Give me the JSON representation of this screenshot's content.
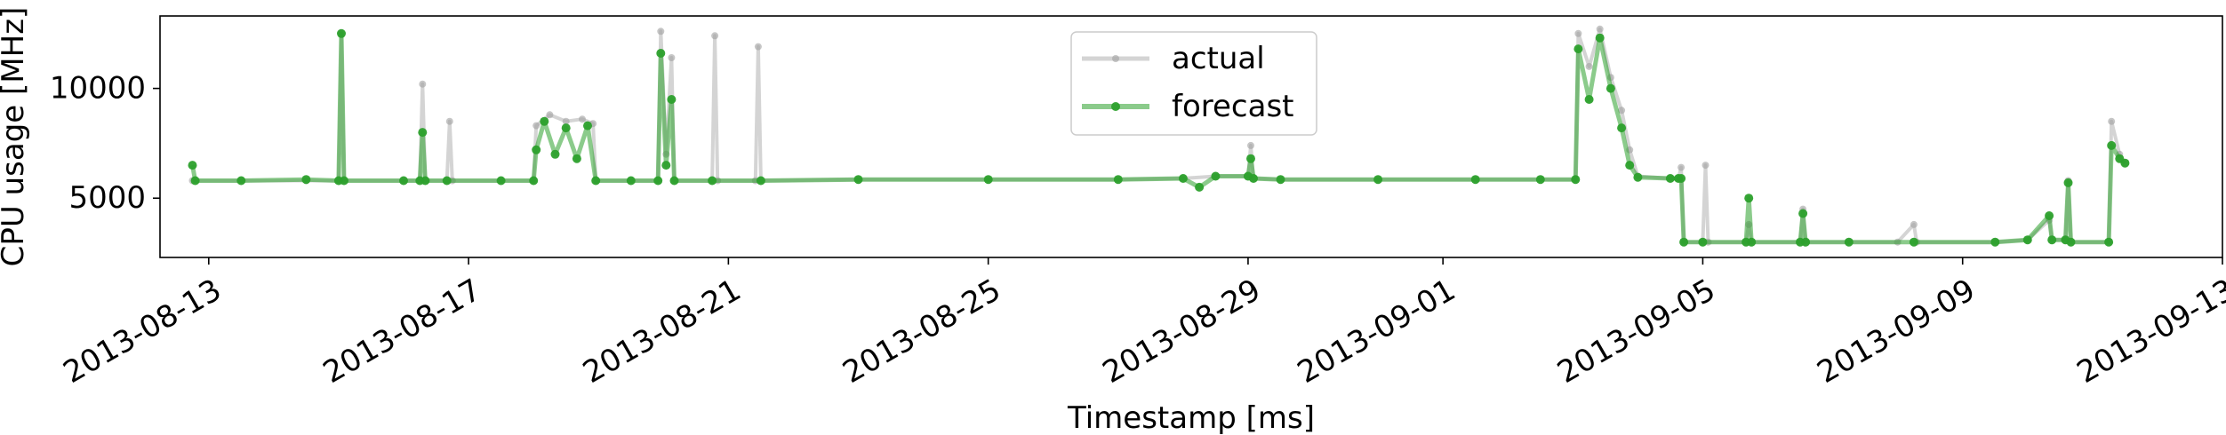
{
  "chart_data": {
    "type": "line",
    "title": "",
    "xlabel": "Timestamp [ms]",
    "ylabel": "CPU usage [MHz]",
    "x_type": "date",
    "xlim": [
      "2013-08-12T06:00",
      "2013-09-13T00:00"
    ],
    "ylim": [
      2300,
      13300
    ],
    "grid": false,
    "legend_position": "top-center",
    "x_tick_labels": [
      "2013-08-13",
      "2013-08-17",
      "2013-08-21",
      "2013-08-25",
      "2013-08-29",
      "2013-09-01",
      "2013-09-05",
      "2013-09-09",
      "2013-09-13"
    ],
    "x_tick_values": [
      "2013-08-13",
      "2013-08-17",
      "2013-08-21",
      "2013-08-25",
      "2013-08-29",
      "2013-09-01",
      "2013-09-05",
      "2013-09-09",
      "2013-09-13"
    ],
    "y_tick_labels": [
      "5000",
      "10000"
    ],
    "y_tick_values": [
      5000,
      10000
    ],
    "series": [
      {
        "name": "actual",
        "color": "#a0a0a0",
        "points": [
          [
            "2013-08-12T18:00",
            5800
          ],
          [
            "2013-08-13T12:00",
            5800
          ],
          [
            "2013-08-14T12:00",
            5800
          ],
          [
            "2013-08-15T00:00",
            5800
          ],
          [
            "2013-08-15T01:00",
            12500
          ],
          [
            "2013-08-15T02:00",
            5800
          ],
          [
            "2013-08-16T00:00",
            5800
          ],
          [
            "2013-08-16T06:00",
            5800
          ],
          [
            "2013-08-16T07:00",
            10200
          ],
          [
            "2013-08-16T08:00",
            5800
          ],
          [
            "2013-08-16T16:00",
            5800
          ],
          [
            "2013-08-16T17:00",
            8500
          ],
          [
            "2013-08-16T18:00",
            5800
          ],
          [
            "2013-08-17T12:00",
            5800
          ],
          [
            "2013-08-18T00:00",
            5800
          ],
          [
            "2013-08-18T01:00",
            8300
          ],
          [
            "2013-08-18T06:00",
            8800
          ],
          [
            "2013-08-18T12:00",
            8500
          ],
          [
            "2013-08-18T18:00",
            8600
          ],
          [
            "2013-08-18T22:00",
            8400
          ],
          [
            "2013-08-18T23:00",
            5800
          ],
          [
            "2013-08-19T12:00",
            5800
          ],
          [
            "2013-08-19T22:00",
            5800
          ],
          [
            "2013-08-19T23:00",
            12600
          ],
          [
            "2013-08-20T01:00",
            7000
          ],
          [
            "2013-08-20T03:00",
            11400
          ],
          [
            "2013-08-20T04:00",
            5800
          ],
          [
            "2013-08-20T18:00",
            5800
          ],
          [
            "2013-08-20T19:00",
            12400
          ],
          [
            "2013-08-20T20:00",
            5800
          ],
          [
            "2013-08-21T10:00",
            5800
          ],
          [
            "2013-08-21T11:00",
            11900
          ],
          [
            "2013-08-21T12:00",
            5800
          ],
          [
            "2013-08-23T00:00",
            5850
          ],
          [
            "2013-08-25T00:00",
            5850
          ],
          [
            "2013-08-27T00:00",
            5850
          ],
          [
            "2013-08-28T00:00",
            5900
          ],
          [
            "2013-08-28T12:00",
            6000
          ],
          [
            "2013-08-29T00:00",
            6000
          ],
          [
            "2013-08-29T01:00",
            7400
          ],
          [
            "2013-08-29T02:00",
            5900
          ],
          [
            "2013-08-29T12:00",
            5850
          ],
          [
            "2013-08-31T00:00",
            5850
          ],
          [
            "2013-09-01T12:00",
            5850
          ],
          [
            "2013-09-02T12:00",
            5850
          ],
          [
            "2013-09-03T01:00",
            5850
          ],
          [
            "2013-09-03T02:00",
            12500
          ],
          [
            "2013-09-03T06:00",
            11000
          ],
          [
            "2013-09-03T10:00",
            12700
          ],
          [
            "2013-09-03T14:00",
            10500
          ],
          [
            "2013-09-03T18:00",
            9000
          ],
          [
            "2013-09-03T21:00",
            7200
          ],
          [
            "2013-09-04T00:00",
            6000
          ],
          [
            "2013-09-04T12:00",
            5900
          ],
          [
            "2013-09-04T15:00",
            5900
          ],
          [
            "2013-09-04T16:00",
            6400
          ],
          [
            "2013-09-04T17:00",
            3000
          ],
          [
            "2013-09-05T00:00",
            3000
          ],
          [
            "2013-09-05T01:00",
            6500
          ],
          [
            "2013-09-05T02:00",
            3000
          ],
          [
            "2013-09-05T16:00",
            3000
          ],
          [
            "2013-09-05T17:00",
            3800
          ],
          [
            "2013-09-05T18:00",
            3000
          ],
          [
            "2013-09-06T12:00",
            3000
          ],
          [
            "2013-09-06T13:00",
            4500
          ],
          [
            "2013-09-06T14:00",
            3000
          ],
          [
            "2013-09-07T06:00",
            3000
          ],
          [
            "2013-09-08T00:00",
            3000
          ],
          [
            "2013-09-08T06:00",
            3800
          ],
          [
            "2013-09-08T07:00",
            3000
          ],
          [
            "2013-09-09T12:00",
            3000
          ],
          [
            "2013-09-10T00:00",
            3100
          ],
          [
            "2013-09-10T08:00",
            4000
          ],
          [
            "2013-09-10T09:00",
            3100
          ],
          [
            "2013-09-10T14:00",
            3100
          ],
          [
            "2013-09-10T15:00",
            5800
          ],
          [
            "2013-09-10T16:00",
            3000
          ],
          [
            "2013-09-11T06:00",
            3000
          ],
          [
            "2013-09-11T07:00",
            8500
          ],
          [
            "2013-09-11T10:00",
            7000
          ],
          [
            "2013-09-11T12:00",
            6600
          ]
        ]
      },
      {
        "name": "forecast",
        "color": "#2ca02c",
        "points": [
          [
            "2013-08-12T18:00",
            6500
          ],
          [
            "2013-08-12T19:00",
            5800
          ],
          [
            "2013-08-13T12:00",
            5800
          ],
          [
            "2013-08-14T12:00",
            5850
          ],
          [
            "2013-08-15T00:00",
            5800
          ],
          [
            "2013-08-15T01:00",
            12500
          ],
          [
            "2013-08-15T02:00",
            5800
          ],
          [
            "2013-08-16T00:00",
            5800
          ],
          [
            "2013-08-16T06:00",
            5800
          ],
          [
            "2013-08-16T07:00",
            8000
          ],
          [
            "2013-08-16T08:00",
            5800
          ],
          [
            "2013-08-16T16:00",
            5800
          ],
          [
            "2013-08-17T12:00",
            5800
          ],
          [
            "2013-08-18T00:00",
            5800
          ],
          [
            "2013-08-18T01:00",
            7200
          ],
          [
            "2013-08-18T04:00",
            8500
          ],
          [
            "2013-08-18T08:00",
            7000
          ],
          [
            "2013-08-18T12:00",
            8200
          ],
          [
            "2013-08-18T16:00",
            6800
          ],
          [
            "2013-08-18T20:00",
            8300
          ],
          [
            "2013-08-18T23:00",
            5800
          ],
          [
            "2013-08-19T12:00",
            5800
          ],
          [
            "2013-08-19T22:00",
            5800
          ],
          [
            "2013-08-19T23:00",
            11600
          ],
          [
            "2013-08-20T01:00",
            6500
          ],
          [
            "2013-08-20T03:00",
            9500
          ],
          [
            "2013-08-20T04:00",
            5800
          ],
          [
            "2013-08-20T18:00",
            5800
          ],
          [
            "2013-08-21T12:00",
            5800
          ],
          [
            "2013-08-23T00:00",
            5850
          ],
          [
            "2013-08-25T00:00",
            5850
          ],
          [
            "2013-08-27T00:00",
            5850
          ],
          [
            "2013-08-28T00:00",
            5900
          ],
          [
            "2013-08-28T06:00",
            5500
          ],
          [
            "2013-08-28T12:00",
            6000
          ],
          [
            "2013-08-29T00:00",
            6000
          ],
          [
            "2013-08-29T01:00",
            6800
          ],
          [
            "2013-08-29T02:00",
            5900
          ],
          [
            "2013-08-29T12:00",
            5850
          ],
          [
            "2013-08-31T00:00",
            5850
          ],
          [
            "2013-09-01T12:00",
            5850
          ],
          [
            "2013-09-02T12:00",
            5850
          ],
          [
            "2013-09-03T01:00",
            5850
          ],
          [
            "2013-09-03T02:00",
            11800
          ],
          [
            "2013-09-03T06:00",
            9500
          ],
          [
            "2013-09-03T10:00",
            12300
          ],
          [
            "2013-09-03T14:00",
            10000
          ],
          [
            "2013-09-03T18:00",
            8200
          ],
          [
            "2013-09-03T21:00",
            6500
          ],
          [
            "2013-09-04T00:00",
            5950
          ],
          [
            "2013-09-04T12:00",
            5900
          ],
          [
            "2013-09-04T15:00",
            5900
          ],
          [
            "2013-09-04T16:00",
            5900
          ],
          [
            "2013-09-04T17:00",
            3000
          ],
          [
            "2013-09-05T00:00",
            3000
          ],
          [
            "2013-09-05T16:00",
            3000
          ],
          [
            "2013-09-05T17:00",
            5000
          ],
          [
            "2013-09-05T18:00",
            3000
          ],
          [
            "2013-09-06T12:00",
            3000
          ],
          [
            "2013-09-06T13:00",
            4300
          ],
          [
            "2013-09-06T14:00",
            3000
          ],
          [
            "2013-09-07T06:00",
            3000
          ],
          [
            "2013-09-08T06:00",
            3000
          ],
          [
            "2013-09-09T12:00",
            3000
          ],
          [
            "2013-09-10T00:00",
            3100
          ],
          [
            "2013-09-10T08:00",
            4200
          ],
          [
            "2013-09-10T09:00",
            3100
          ],
          [
            "2013-09-10T14:00",
            3100
          ],
          [
            "2013-09-10T15:00",
            5700
          ],
          [
            "2013-09-10T16:00",
            3000
          ],
          [
            "2013-09-11T06:00",
            3000
          ],
          [
            "2013-09-11T07:00",
            7400
          ],
          [
            "2013-09-11T10:00",
            6800
          ],
          [
            "2013-09-11T12:00",
            6600
          ]
        ]
      }
    ]
  }
}
